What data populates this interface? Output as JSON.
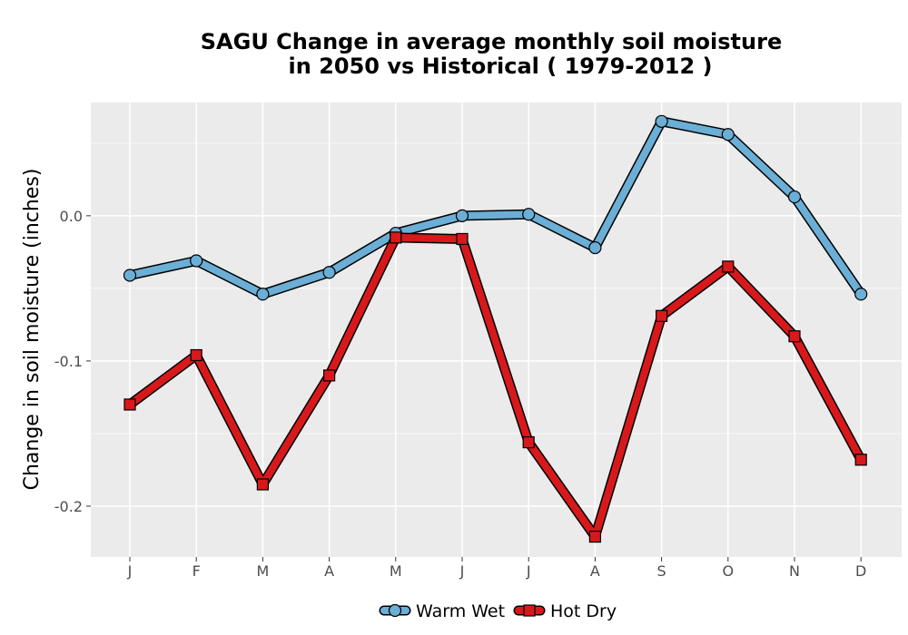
{
  "chart_data": {
    "type": "line",
    "title_line1": "SAGU  Change in average monthly soil moisture",
    "title_line2": "in 2050 vs Historical ( 1979-2012 )",
    "xlabel": "",
    "ylabel": "Change in soil moisture (inches)",
    "categories": [
      "J",
      "F",
      "M",
      "A",
      "M",
      "J",
      "J",
      "A",
      "S",
      "O",
      "N",
      "D"
    ],
    "yticks": [
      0.0,
      -0.1,
      -0.2
    ],
    "ytick_labels": [
      "0.0",
      "-0.1",
      "-0.2"
    ],
    "ylim": [
      -0.235,
      0.078
    ],
    "grid": true,
    "legend_position": "bottom",
    "series": [
      {
        "name": "Warm Wet",
        "color": "#6baed6",
        "marker": "circle",
        "values": [
          -0.041,
          -0.031,
          -0.054,
          -0.039,
          -0.012,
          0.0,
          0.001,
          -0.022,
          0.065,
          0.056,
          0.013,
          -0.054
        ]
      },
      {
        "name": "Hot Dry",
        "color": "#d7191c",
        "marker": "square",
        "values": [
          -0.13,
          -0.096,
          -0.185,
          -0.11,
          -0.015,
          -0.016,
          -0.156,
          -0.221,
          -0.069,
          -0.035,
          -0.083,
          -0.168
        ]
      }
    ]
  }
}
